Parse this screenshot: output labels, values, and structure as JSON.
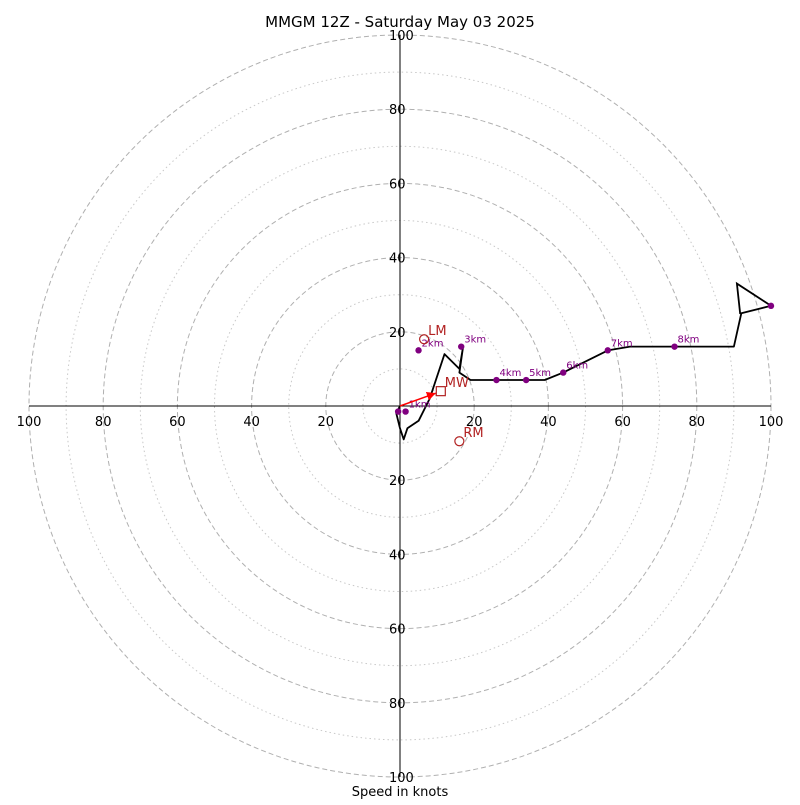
{
  "chart_data": {
    "type": "scatter",
    "title": "MMGM 12Z - Saturday May 03 2025",
    "xlabel": "Speed in knots",
    "ylabel": "",
    "xlim": [
      -100,
      100
    ],
    "ylim": [
      -100,
      100
    ],
    "grid": true,
    "rings": {
      "major": [
        20,
        40,
        60,
        80,
        100
      ],
      "minor": [
        10,
        30,
        50,
        70,
        90
      ]
    },
    "x_tick_labels": [
      "100",
      "80",
      "60",
      "40",
      "20",
      "20",
      "40",
      "60",
      "80",
      "100"
    ],
    "x_tick_values": [
      -100,
      -80,
      -60,
      -40,
      -20,
      20,
      40,
      60,
      80,
      100
    ],
    "y_tick_labels": [
      "100",
      "80",
      "60",
      "40",
      "20",
      "20",
      "40",
      "60",
      "80",
      "100"
    ],
    "y_tick_values": [
      100,
      80,
      60,
      40,
      20,
      -20,
      -40,
      -60,
      -80,
      -100
    ],
    "hodograph": {
      "u": [
        0,
        -0.5,
        -1,
        0,
        1,
        2,
        5,
        8,
        12,
        16,
        17,
        16,
        19,
        26,
        34,
        39,
        44,
        56,
        62,
        70,
        74,
        90,
        92,
        100
      ],
      "v": [
        0,
        -1,
        -2,
        -6,
        -9,
        -6,
        -4,
        2,
        14,
        10,
        16,
        9,
        7,
        7,
        7,
        7,
        9,
        15,
        16,
        16,
        16,
        16,
        25,
        27
      ]
    },
    "barb": {
      "u": [
        91.7,
        90.8,
        100
      ],
      "v": [
        24.8,
        33,
        27
      ]
    },
    "height_markers": [
      {
        "label": "",
        "u": -0.5,
        "v": -1.5
      },
      {
        "label": "1km",
        "u": 1.5,
        "v": -1.5
      },
      {
        "label": "2km",
        "u": 5,
        "v": 15
      },
      {
        "label": "3km",
        "u": 16.5,
        "v": 16
      },
      {
        "label": "4km",
        "u": 26,
        "v": 7
      },
      {
        "label": "5km",
        "u": 34,
        "v": 7
      },
      {
        "label": "6km",
        "u": 44,
        "v": 9
      },
      {
        "label": "7km",
        "u": 56,
        "v": 15
      },
      {
        "label": "8km",
        "u": 74,
        "v": 16
      },
      {
        "label": "",
        "u": 100,
        "v": 27
      }
    ],
    "storm_motion": [
      {
        "label": "LM",
        "u": 6.5,
        "v": 18,
        "marker": "circle"
      },
      {
        "label": "RM",
        "u": 16,
        "v": -9.5,
        "marker": "circle"
      },
      {
        "label": "MW",
        "u": 11,
        "v": 4,
        "marker": "square"
      }
    ],
    "colors": {
      "hodograph": "#000000",
      "height_marker": "#800080",
      "storm_motion": "#b22222",
      "mean_wind_arrow": "#ff0000",
      "grid": "#b0b0b0",
      "axes": "#000000"
    }
  }
}
